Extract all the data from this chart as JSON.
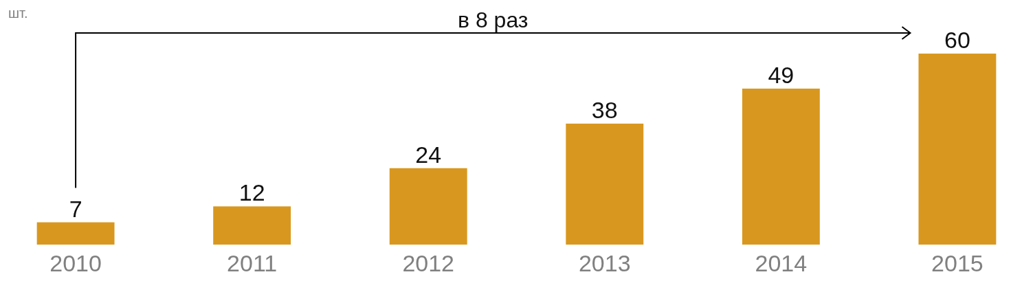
{
  "chart_data": {
    "type": "bar",
    "ylabel": "шт.",
    "categories": [
      "2010",
      "2011",
      "2012",
      "2013",
      "2014",
      "2015"
    ],
    "values": [
      7,
      12,
      24,
      38,
      49,
      60
    ],
    "color": "#d8981f",
    "data_labels": true,
    "annotations": [
      "в 8 раз"
    ]
  }
}
